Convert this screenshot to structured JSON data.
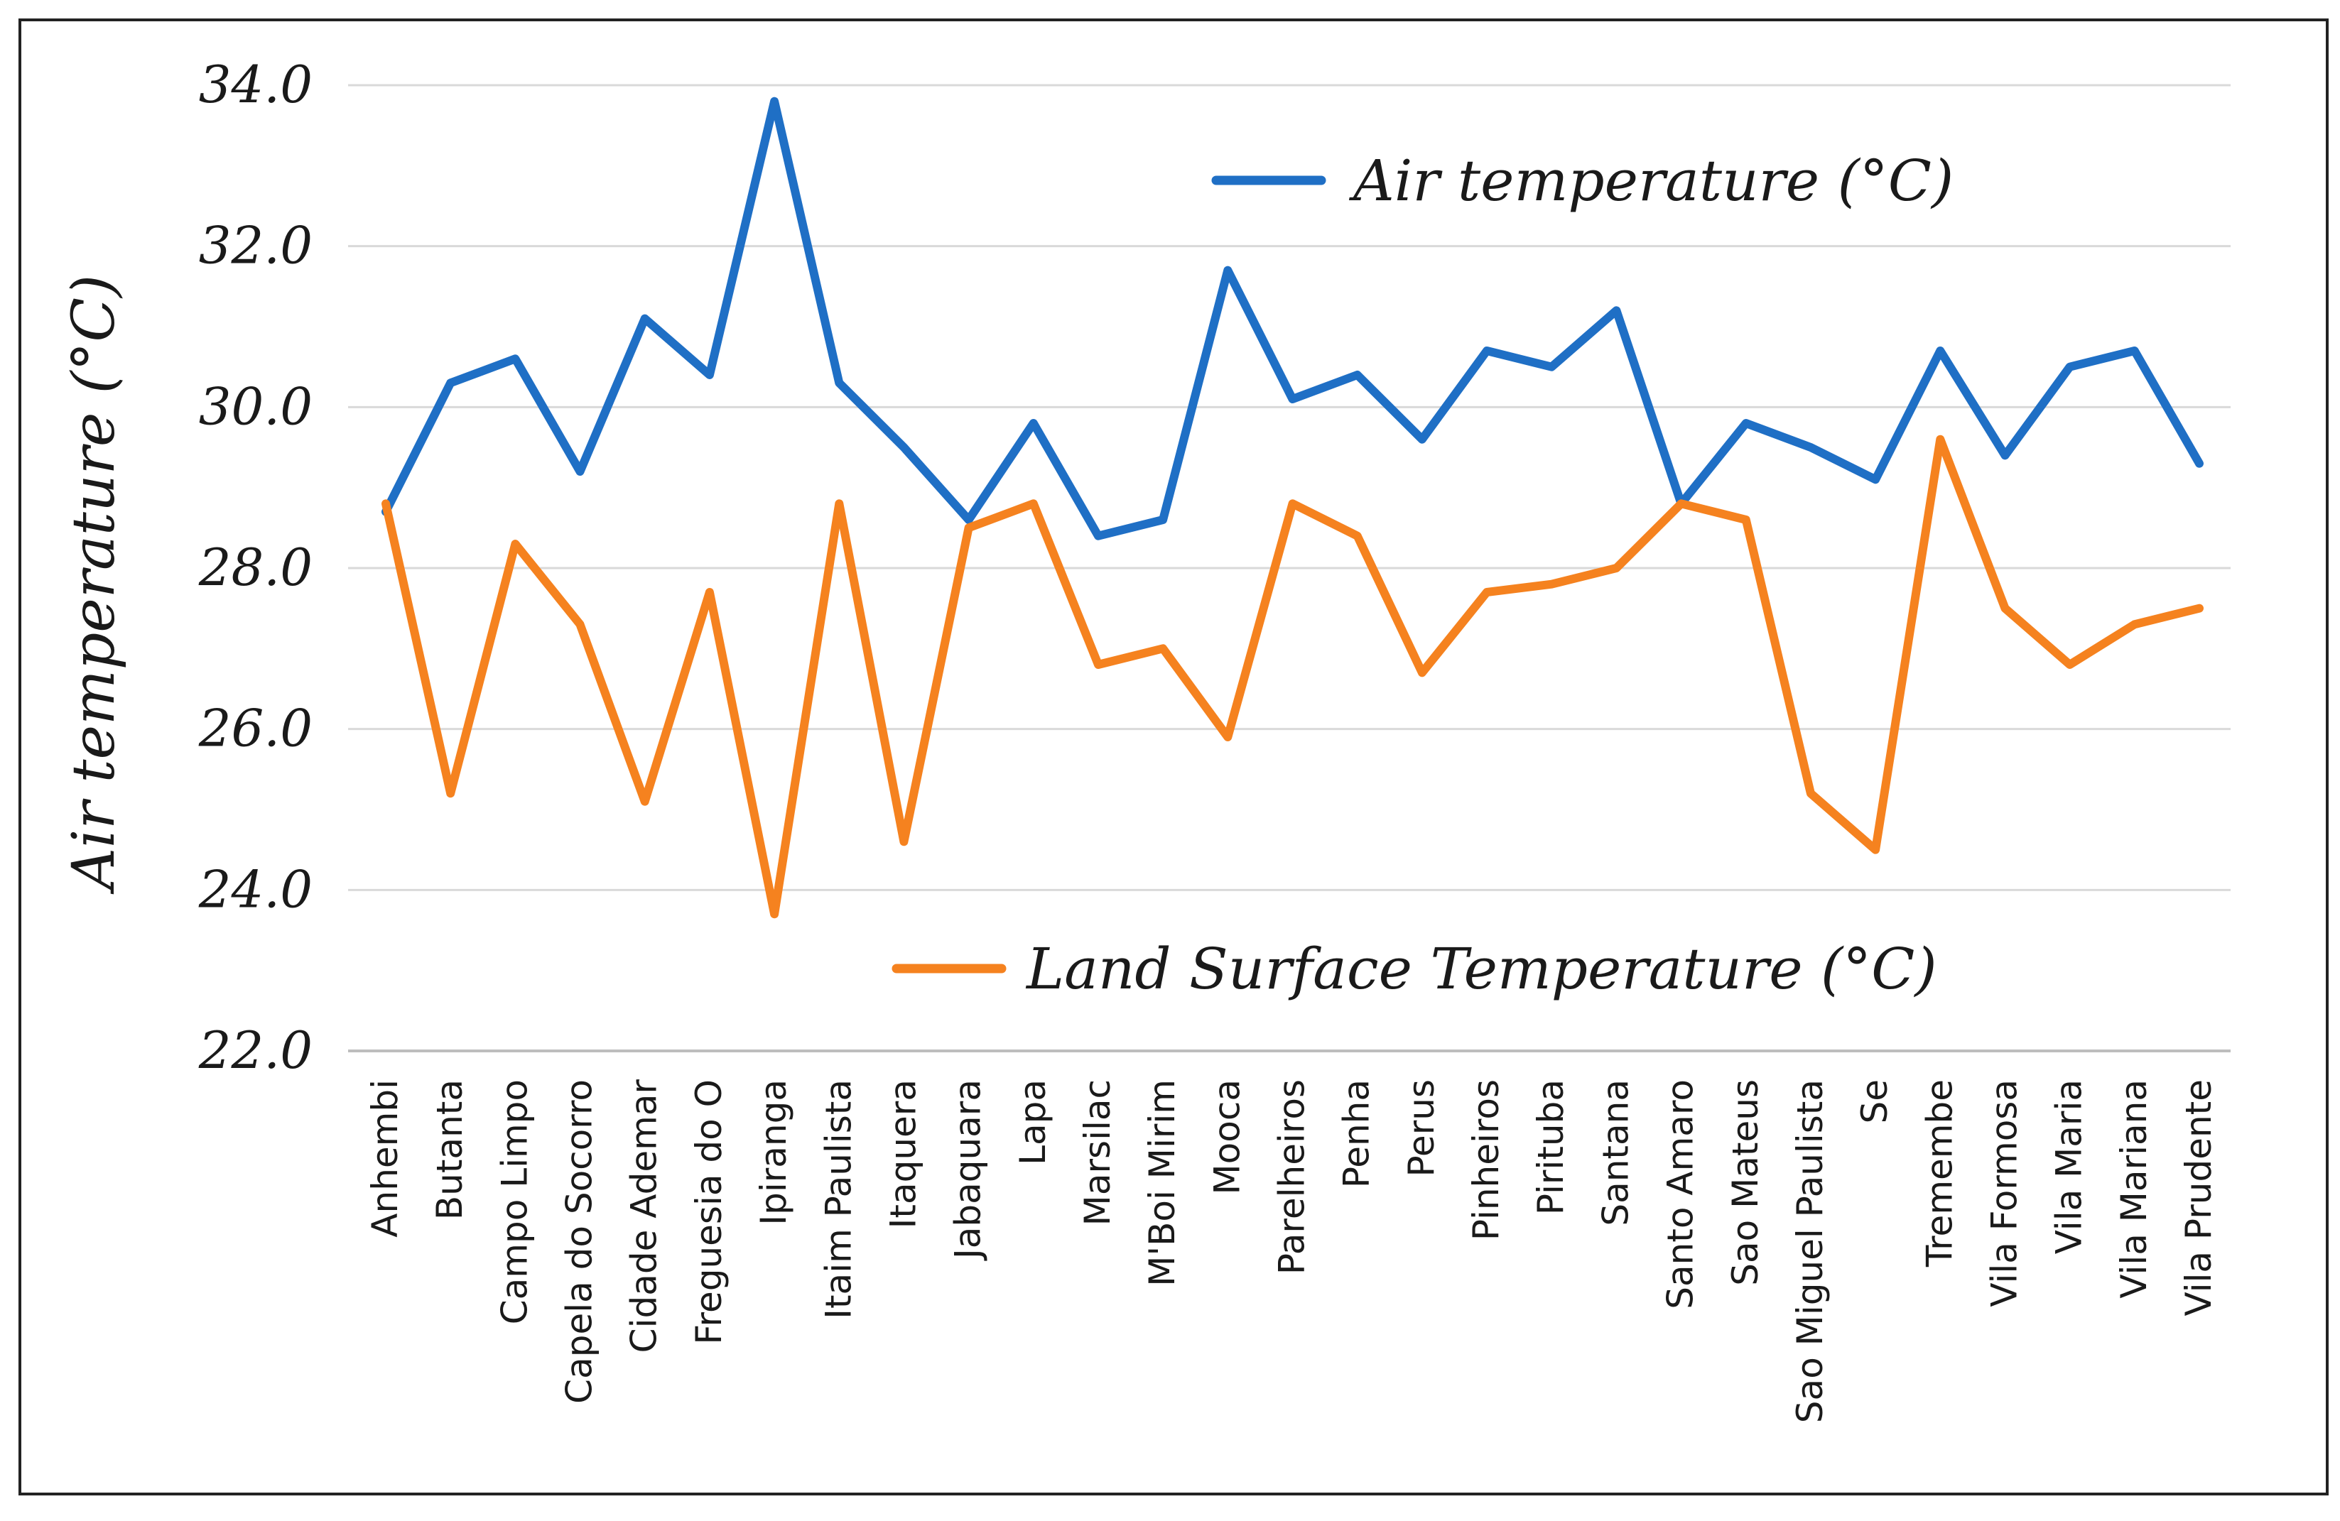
{
  "chart_data": {
    "type": "line",
    "title": "",
    "xlabel": "",
    "ylabel": "Air temperature (°C)",
    "ylim": [
      22.0,
      34.0
    ],
    "yticks": [
      "22.0",
      "24.0",
      "26.0",
      "28.0",
      "30.0",
      "32.0",
      "34.0"
    ],
    "grid": true,
    "categories": [
      "Anhembi",
      "Butanta",
      "Campo Limpo",
      "Capela do Socorro",
      "Cidade Ademar",
      "Freguesia do O",
      "Ipiranga",
      "Itaim Paulista",
      "Itaquera",
      "Jabaquara",
      "Lapa",
      "Marsilac",
      "M'Boi Mirim",
      "Mooca",
      "Parelheiros",
      "Penha",
      "Perus",
      "Pinheiros",
      "Pirituba",
      "Santana",
      "Santo Amaro",
      "Sao Mateus",
      "Sao Miguel Paulista",
      "Se",
      "Tremembe",
      "Vila Formosa",
      "Vila Maria",
      "Vila Mariana",
      "Vila Prudente"
    ],
    "series": [
      {
        "name": "Air temperature (°C)",
        "color": "#1f6fc5",
        "values": [
          28.7,
          30.3,
          30.6,
          29.2,
          31.1,
          30.4,
          33.8,
          30.3,
          29.5,
          28.6,
          29.8,
          28.4,
          28.6,
          31.7,
          30.1,
          30.4,
          29.6,
          30.7,
          30.5,
          31.2,
          28.8,
          29.8,
          29.5,
          29.1,
          30.7,
          29.4,
          30.5,
          30.7,
          29.3
        ]
      },
      {
        "name": "Land Surface Temperature (°C)",
        "color": "#f5821f",
        "values": [
          28.8,
          25.2,
          28.3,
          27.3,
          25.1,
          27.7,
          23.7,
          28.8,
          24.6,
          28.5,
          28.8,
          26.8,
          27.0,
          25.9,
          28.8,
          28.4,
          26.7,
          27.7,
          27.8,
          28.0,
          28.8,
          28.6,
          25.2,
          24.5,
          29.6,
          27.5,
          26.8,
          27.3,
          27.5
        ]
      }
    ],
    "legend": "top-right / lower-middle"
  }
}
